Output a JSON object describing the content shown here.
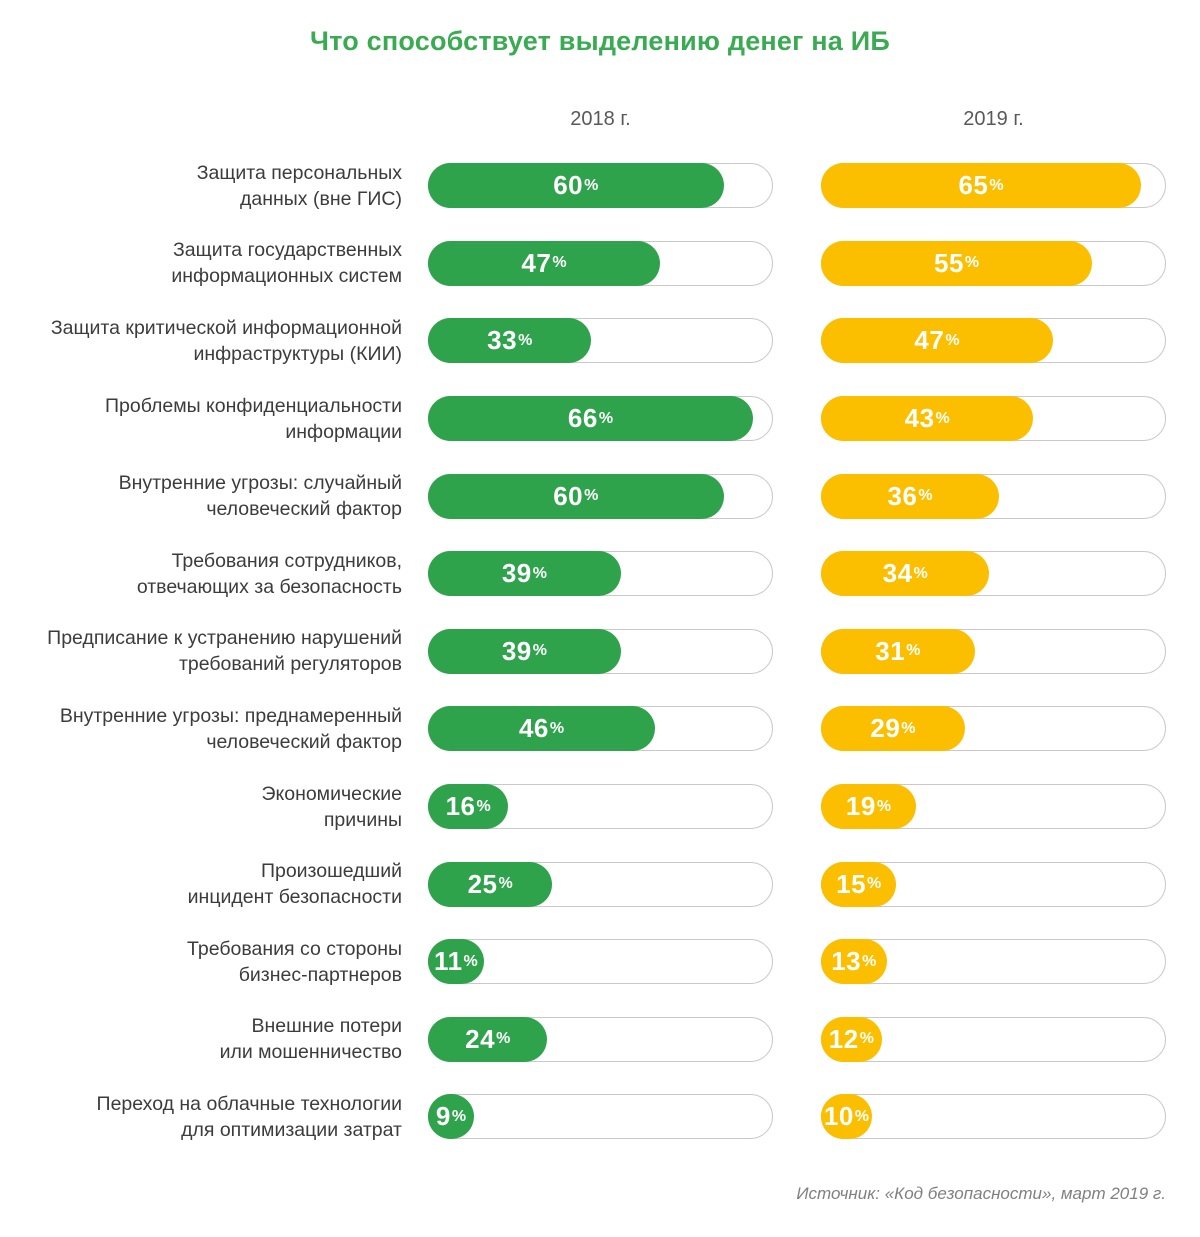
{
  "title": "Что способствует выделению денег на ИБ",
  "columns": [
    {
      "label": "2018 г."
    },
    {
      "label": "2019 г."
    }
  ],
  "source": "Источник: «Код безопасности», март 2019 г.",
  "colors": {
    "green_2018": "#2FA24C",
    "yellow_2019": "#FCBF00",
    "title_green": "#3BAB53",
    "track_border": "#C9C9C9",
    "label_text": "#3C3C3C",
    "header_text": "#595959",
    "source_text": "#808080"
  },
  "unit": "%",
  "chart_data": {
    "type": "bar",
    "orientation": "horizontal",
    "title": "Что способствует выделению денег на ИБ",
    "unit": "%",
    "grid": false,
    "legend_position": "top",
    "bar_scale_max": 70.5,
    "categories": [
      "Защита персональных\nданных (вне ГИС)",
      "Защита государственных\nинформационных систем",
      "Защита критической информационной\nинфраструктуры (КИИ)",
      "Проблемы конфиденциальности\nинформации",
      "Внутренние угрозы: случайный\nчеловеческий фактор",
      "Требования сотрудников,\nотвечающих за безопасность",
      "Предписание к устранению нарушений\nтребований регуляторов",
      "Внутренние угрозы: преднамеренный\nчеловеческий фактор",
      "Экономические\nпричины",
      "Произошедший\nинцидент безопасности",
      "Требования со стороны\nбизнес-партнеров",
      "Внешние потери\nили мошенничество",
      "Переход на облачные технологии\nдля оптимизации затрат"
    ],
    "series": [
      {
        "name": "2018 г.",
        "color": "#2FA24C",
        "values": [
          60,
          47,
          33,
          66,
          60,
          39,
          39,
          46,
          16,
          25,
          11,
          24,
          9
        ]
      },
      {
        "name": "2019 г.",
        "color": "#FCBF00",
        "values": [
          65,
          55,
          47,
          43,
          36,
          34,
          31,
          29,
          19,
          15,
          13,
          12,
          10
        ]
      }
    ]
  }
}
